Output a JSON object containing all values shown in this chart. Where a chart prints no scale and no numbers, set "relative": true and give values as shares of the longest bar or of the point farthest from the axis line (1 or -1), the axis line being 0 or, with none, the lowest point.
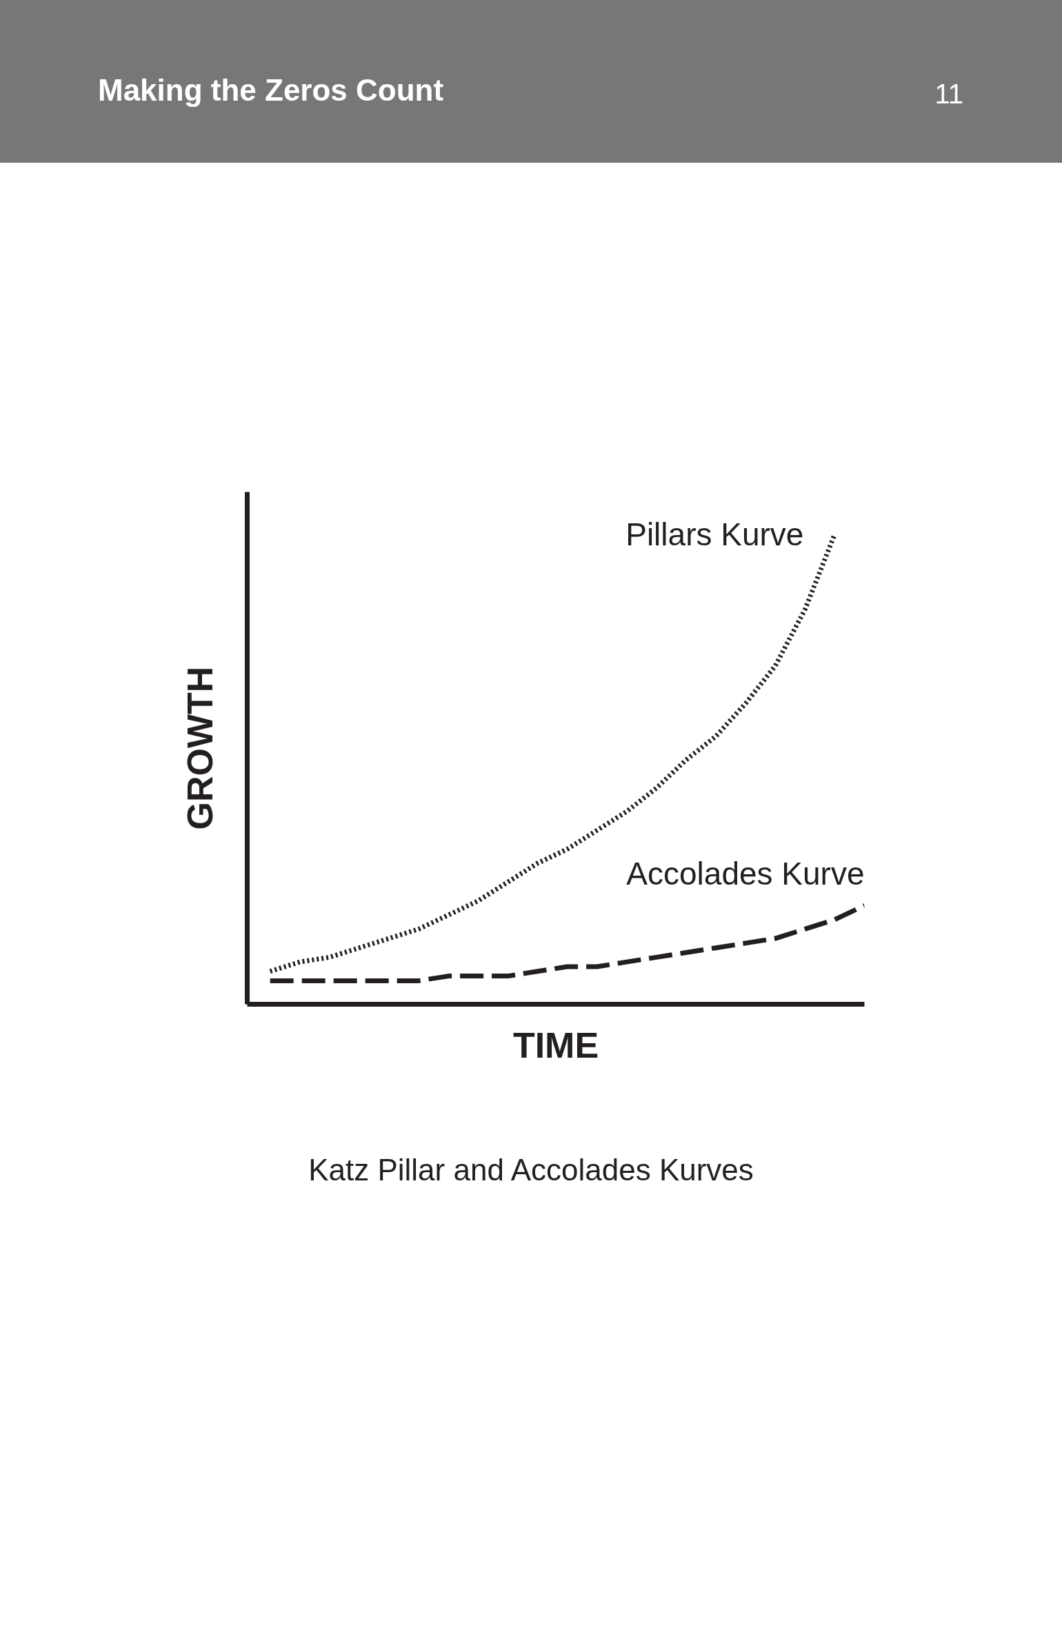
{
  "chart_data": {
    "type": "line",
    "relative": true,
    "xlabel": "TIME",
    "ylabel": "GROWTH",
    "annotations": [
      "Making the Zeros Count",
      "11",
      "Katz Pillar and Accolades Kurves"
    ],
    "categories": [
      null,
      null,
      null,
      null,
      null,
      null,
      null,
      null,
      null,
      null,
      null,
      null,
      null,
      null,
      null,
      null,
      null,
      null,
      null,
      null,
      null
    ],
    "series": [
      {
        "name": "Pillars Kurve",
        "color": "#231f20",
        "line_style": "dotted",
        "values": [
          0.07,
          0.09,
          0.1,
          0.12,
          0.14,
          0.16,
          0.19,
          0.22,
          0.26,
          0.3,
          0.33,
          0.37,
          0.41,
          0.46,
          0.52,
          0.57,
          0.64,
          0.72,
          0.84,
          1.0,
          null
        ]
      },
      {
        "name": "Accolades Kurve",
        "color": "#231f20",
        "line_style": "dashed",
        "values": [
          0.05,
          0.05,
          0.05,
          0.05,
          0.05,
          0.05,
          0.06,
          0.06,
          0.06,
          0.07,
          0.08,
          0.08,
          0.09,
          0.1,
          0.11,
          0.12,
          0.13,
          0.14,
          0.16,
          0.18,
          0.21
        ]
      }
    ],
    "marker": "none"
  }
}
